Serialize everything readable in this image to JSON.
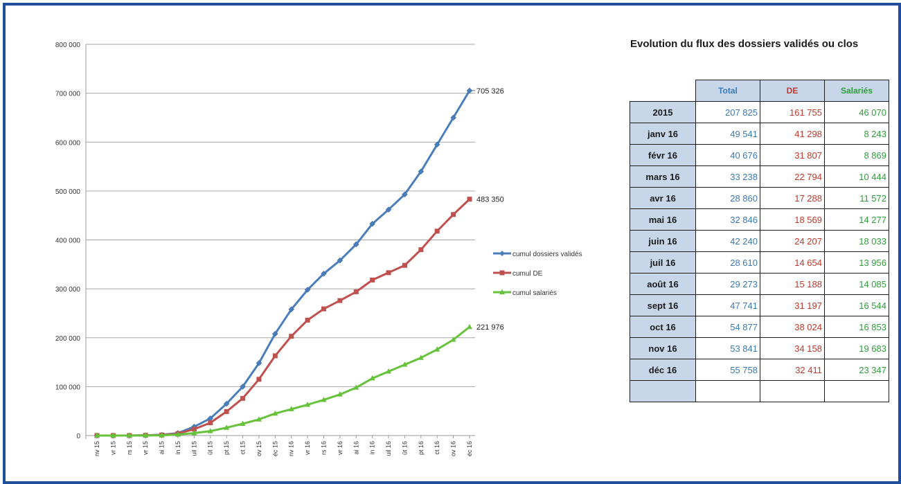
{
  "chart_data": {
    "type": "line",
    "title": "",
    "xlabel": "",
    "ylabel": "",
    "ylim": [
      0,
      800000
    ],
    "y_ticks": [
      "0",
      "100 000",
      "200 000",
      "300 000",
      "400 000",
      "500 000",
      "600 000",
      "700 000",
      "800 000"
    ],
    "categories": [
      "nv 15",
      "vr 15",
      "rs 15",
      "vr 15",
      "ai 15",
      "in 15",
      "uil 15",
      "ût 15",
      "pt 15",
      "ct 15",
      "ov 15",
      "éc 15",
      "nv 16",
      "vr 16",
      "rs 16",
      "vr 16",
      "ai 16",
      "in 16",
      "uil 16",
      "ût 16",
      "pt 16",
      "ct 16",
      "ov 16",
      "éc 16"
    ],
    "legend_position": "right",
    "grid": true,
    "series": [
      {
        "name": "cumul dossiers validés",
        "color": "#4a7ebb",
        "marker": "diamond",
        "values": [
          0,
          0,
          0,
          500,
          1500,
          5000,
          18000,
          35000,
          65000,
          100000,
          148000,
          208000,
          258000,
          298000,
          331000,
          358000,
          391000,
          433000,
          462000,
          493000,
          540000,
          595000,
          650000,
          705326
        ],
        "end_label": "705 326"
      },
      {
        "name": "cumul DE",
        "color": "#c0504d",
        "marker": "square",
        "values": [
          0,
          0,
          0,
          400,
          1000,
          4000,
          13000,
          26000,
          49000,
          76000,
          115000,
          163000,
          203000,
          236000,
          259000,
          276000,
          294000,
          318000,
          333000,
          348000,
          380000,
          418000,
          452000,
          483350
        ],
        "end_label": "483 350"
      },
      {
        "name": "cumul salariés",
        "color": "#66c23a",
        "marker": "triangle",
        "values": [
          0,
          0,
          0,
          100,
          500,
          2000,
          5000,
          9000,
          16000,
          24000,
          33000,
          45000,
          54000,
          63000,
          73000,
          84000,
          98000,
          117000,
          131000,
          145000,
          159000,
          176000,
          196000,
          221976
        ],
        "end_label": "221 976"
      }
    ]
  },
  "table": {
    "title": "Evolution du flux des dossiers validés ou clos",
    "headers": [
      "Total",
      "DE",
      "Salariés"
    ],
    "rows": [
      {
        "label": "2015",
        "total": "207 825",
        "de": "161 755",
        "sal": "46 070"
      },
      {
        "label": "janv 16",
        "total": "49 541",
        "de": "41 298",
        "sal": "8 243"
      },
      {
        "label": "févr 16",
        "total": "40 676",
        "de": "31 807",
        "sal": "8 869"
      },
      {
        "label": "mars 16",
        "total": "33 238",
        "de": "22 794",
        "sal": "10 444"
      },
      {
        "label": "avr 16",
        "total": "28 860",
        "de": "17 288",
        "sal": "11 572"
      },
      {
        "label": "mai 16",
        "total": "32 846",
        "de": "18 569",
        "sal": "14 277"
      },
      {
        "label": "juin 16",
        "total": "42 240",
        "de": "24 207",
        "sal": "18 033"
      },
      {
        "label": "juil 16",
        "total": "28 610",
        "de": "14 654",
        "sal": "13 956"
      },
      {
        "label": "août 16",
        "total": "29 273",
        "de": "15 188",
        "sal": "14 085"
      },
      {
        "label": "sept 16",
        "total": "47 741",
        "de": "31 197",
        "sal": "16 544"
      },
      {
        "label": "oct 16",
        "total": "54 877",
        "de": "38 024",
        "sal": "16 853"
      },
      {
        "label": "nov 16",
        "total": "53 841",
        "de": "34 158",
        "sal": "19 683"
      },
      {
        "label": "déc 16",
        "total": "55 758",
        "de": "32 411",
        "sal": "23 347"
      }
    ]
  }
}
